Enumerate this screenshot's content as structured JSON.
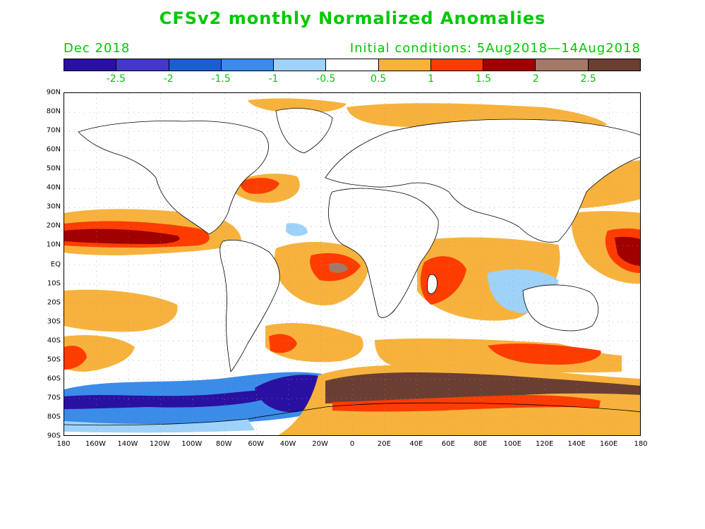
{
  "header": {
    "title": "CFSv2 monthly Normalized Anomalies",
    "month": "Dec 2018",
    "initial_conditions": "Initial conditions: 5Aug2018—14Aug2018"
  },
  "colorbar": {
    "colors": [
      "#2a10a0",
      "#4438c8",
      "#1a5fd0",
      "#3a8ce8",
      "#9ed2f8",
      "#ffffff",
      "#f7b23d",
      "#ff3c00",
      "#a00000",
      "#a47868",
      "#6b3e32"
    ],
    "labels": [
      "-2.5",
      "-2",
      "-1.5",
      "-1",
      "-0.5",
      "0.5",
      "1",
      "1.5",
      "2",
      "2.5"
    ]
  },
  "axes": {
    "lat_labels": [
      "90N",
      "80N",
      "70N",
      "60N",
      "50N",
      "40N",
      "30N",
      "20N",
      "10N",
      "EQ",
      "10S",
      "20S",
      "30S",
      "40S",
      "50S",
      "60S",
      "70S",
      "80S",
      "90S"
    ],
    "lon_labels": [
      "180",
      "160W",
      "140W",
      "120W",
      "100W",
      "80W",
      "60W",
      "40W",
      "20W",
      "0",
      "20E",
      "40E",
      "60E",
      "80E",
      "100E",
      "120E",
      "140E",
      "160E",
      "180"
    ]
  }
}
